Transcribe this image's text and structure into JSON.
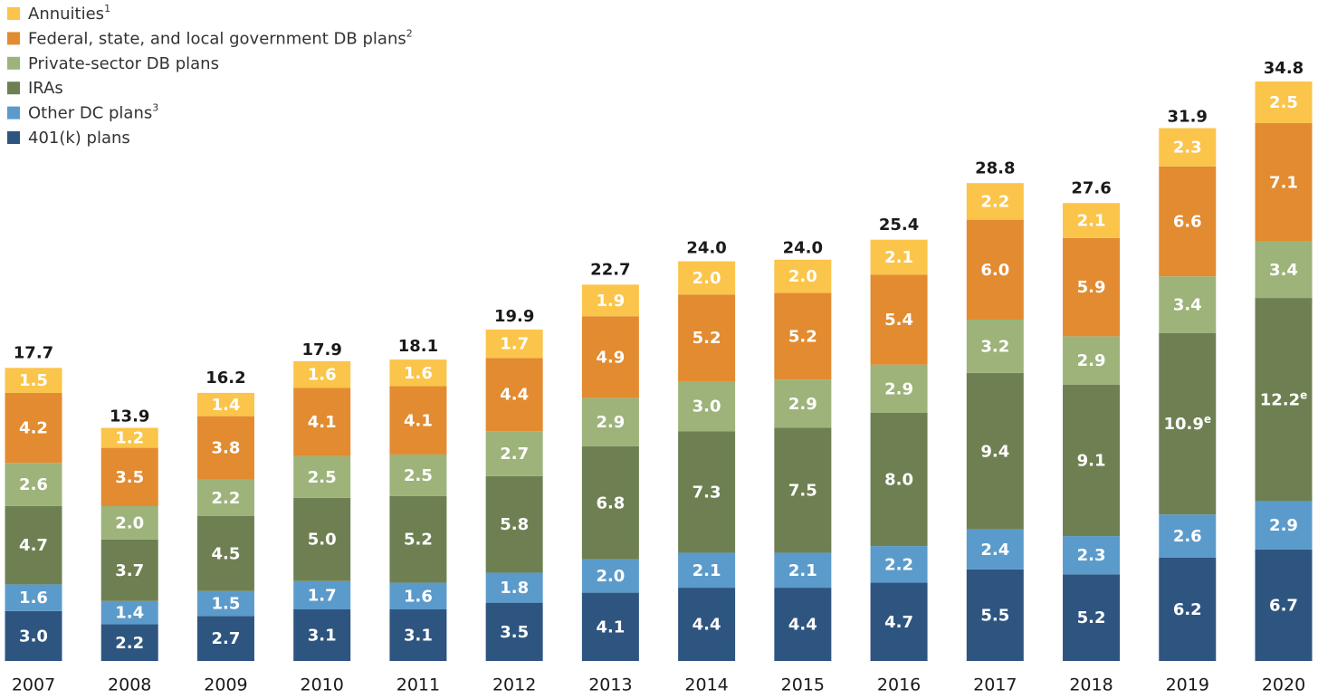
{
  "chart_data": {
    "type": "stacked_bar",
    "categories": [
      "2007",
      "2008",
      "2009",
      "2010",
      "2011",
      "2012",
      "2013",
      "2014",
      "2015",
      "2016",
      "2017",
      "2018",
      "2019",
      "2020"
    ],
    "totals": [
      17.7,
      13.9,
      16.2,
      17.9,
      18.1,
      19.9,
      22.7,
      24,
      24,
      25.4,
      28.8,
      27.6,
      31.9,
      34.8
    ],
    "total_labels": [
      "17.7",
      "13.9",
      "16.2",
      "17.9",
      "18.1",
      "19.9",
      "22.7",
      "24.0",
      "24.0",
      "25.4",
      "28.8",
      "27.6",
      "31.9",
      "34.8"
    ],
    "series": [
      {
        "name": "401(k) plans",
        "color": "#2e5580",
        "values": [
          3,
          2.2,
          2.7,
          3.1,
          3.1,
          3.5,
          4.1,
          4.4,
          4.4,
          4.7,
          5.5,
          5.2,
          6.2,
          6.7
        ],
        "value_labels": [
          "3.0",
          "2.2",
          "2.7",
          "3.1",
          "3.1",
          "3.5",
          "4.1",
          "4.4",
          "4.4",
          "4.7",
          "5.5",
          "5.2",
          "6.2",
          "6.7"
        ]
      },
      {
        "name": "Other DC plans",
        "footnote": "3",
        "color": "#5b9bcb",
        "values": [
          1.6,
          1.4,
          1.5,
          1.7,
          1.6,
          1.8,
          2,
          2.1,
          2.1,
          2.2,
          2.4,
          2.3,
          2.6,
          2.9
        ],
        "value_labels": [
          "1.6",
          "1.4",
          "1.5",
          "1.7",
          "1.6",
          "1.8",
          "2.0",
          "2.1",
          "2.1",
          "2.2",
          "2.4",
          "2.3",
          "2.6",
          "2.9"
        ]
      },
      {
        "name": "IRAs",
        "color": "#6e8052",
        "values": [
          4.7,
          3.7,
          4.5,
          5,
          5.2,
          5.8,
          6.8,
          7.3,
          7.5,
          8,
          9.4,
          9.1,
          10.9,
          12.2
        ],
        "value_labels": [
          "4.7",
          "3.7",
          "4.5",
          "5.0",
          "5.2",
          "5.8",
          "6.8",
          "7.3",
          "7.5",
          "8.0",
          "9.4",
          "9.1",
          "10.9",
          "12.2"
        ],
        "value_notes": [
          null,
          null,
          null,
          null,
          null,
          null,
          null,
          null,
          null,
          null,
          null,
          null,
          "e",
          "e"
        ]
      },
      {
        "name": "Private-sector DB plans",
        "color": "#9db37a",
        "values": [
          2.6,
          2,
          2.2,
          2.5,
          2.5,
          2.7,
          2.9,
          3,
          2.9,
          2.9,
          3.2,
          2.9,
          3.4,
          3.4
        ],
        "value_labels": [
          "2.6",
          "2.0",
          "2.2",
          "2.5",
          "2.5",
          "2.7",
          "2.9",
          "3.0",
          "2.9",
          "2.9",
          "3.2",
          "2.9",
          "3.4",
          "3.4"
        ]
      },
      {
        "name": "Federal, state, and local government DB plans",
        "footnote": "2",
        "color": "#e28b30",
        "values": [
          4.2,
          3.5,
          3.8,
          4.1,
          4.1,
          4.4,
          4.9,
          5.2,
          5.2,
          5.4,
          6,
          5.9,
          6.6,
          7.1
        ],
        "value_labels": [
          "4.2",
          "3.5",
          "3.8",
          "4.1",
          "4.1",
          "4.4",
          "4.9",
          "5.2",
          "5.2",
          "5.4",
          "6.0",
          "5.9",
          "6.6",
          "7.1"
        ]
      },
      {
        "name": "Annuities",
        "footnote": "1",
        "color": "#fbc44a",
        "values": [
          1.5,
          1.2,
          1.4,
          1.6,
          1.6,
          1.7,
          1.9,
          2,
          2,
          2.1,
          2.2,
          2.1,
          2.3,
          2.5
        ],
        "value_labels": [
          "1.5",
          "1.2",
          "1.4",
          "1.6",
          "1.6",
          "1.7",
          "1.9",
          "2.0",
          "2.0",
          "2.1",
          "2.2",
          "2.1",
          "2.3",
          "2.5"
        ]
      }
    ]
  }
}
